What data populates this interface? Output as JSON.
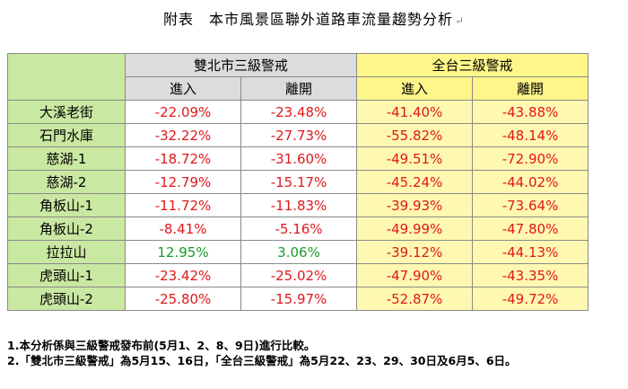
{
  "title": "附表　本市風景區聯外道路車流量趨勢分析",
  "title_mark": "↵",
  "groups": [
    "雙北市三級警戒",
    "全台三級警戒"
  ],
  "subheaders": [
    "進入",
    "離開",
    "進入",
    "離開"
  ],
  "rows": [
    {
      "place": "大溪老街",
      "values": [
        "-22.09%",
        "-23.48%",
        "-41.40%",
        "-43.88%"
      ]
    },
    {
      "place": "石門水庫",
      "values": [
        "-32.22%",
        "-27.73%",
        "-55.82%",
        "-48.14%"
      ]
    },
    {
      "place": "慈湖-1",
      "values": [
        "-18.72%",
        "-31.60%",
        "-49.51%",
        "-72.90%"
      ]
    },
    {
      "place": "慈湖-2",
      "values": [
        "-12.79%",
        "-15.17%",
        "-45.24%",
        "-44.02%"
      ]
    },
    {
      "place": "角板山-1",
      "values": [
        "-11.72%",
        "-11.83%",
        "-39.93%",
        "-73.64%"
      ]
    },
    {
      "place": "角板山-2",
      "values": [
        "-8.41%",
        "-5.16%",
        "-49.99%",
        "-47.80%"
      ]
    },
    {
      "place": "拉拉山",
      "values": [
        "12.95%",
        "3.06%",
        "-39.12%",
        "-44.13%"
      ]
    },
    {
      "place": "虎頭山-1",
      "values": [
        "-23.42%",
        "-25.02%",
        "-47.90%",
        "-43.35%"
      ]
    },
    {
      "place": "虎頭山-2",
      "values": [
        "-25.80%",
        "-15.97%",
        "-52.87%",
        "-49.72%"
      ]
    }
  ],
  "notes": [
    "1.本分析係與三級警戒發布前(5月1、2、8、9日)進行比較。",
    "2.「雙北市三級警戒」為5月15、16日，「全台三級警戒」為5月22、23、29、30日及6月5、6日。"
  ],
  "colors": {
    "place_bg": "#c9e8a2",
    "group1_bg": "#dcdcdc",
    "group2_bg": "#fff68a",
    "negative": "#e0181c",
    "positive": "#1a9a2a"
  }
}
